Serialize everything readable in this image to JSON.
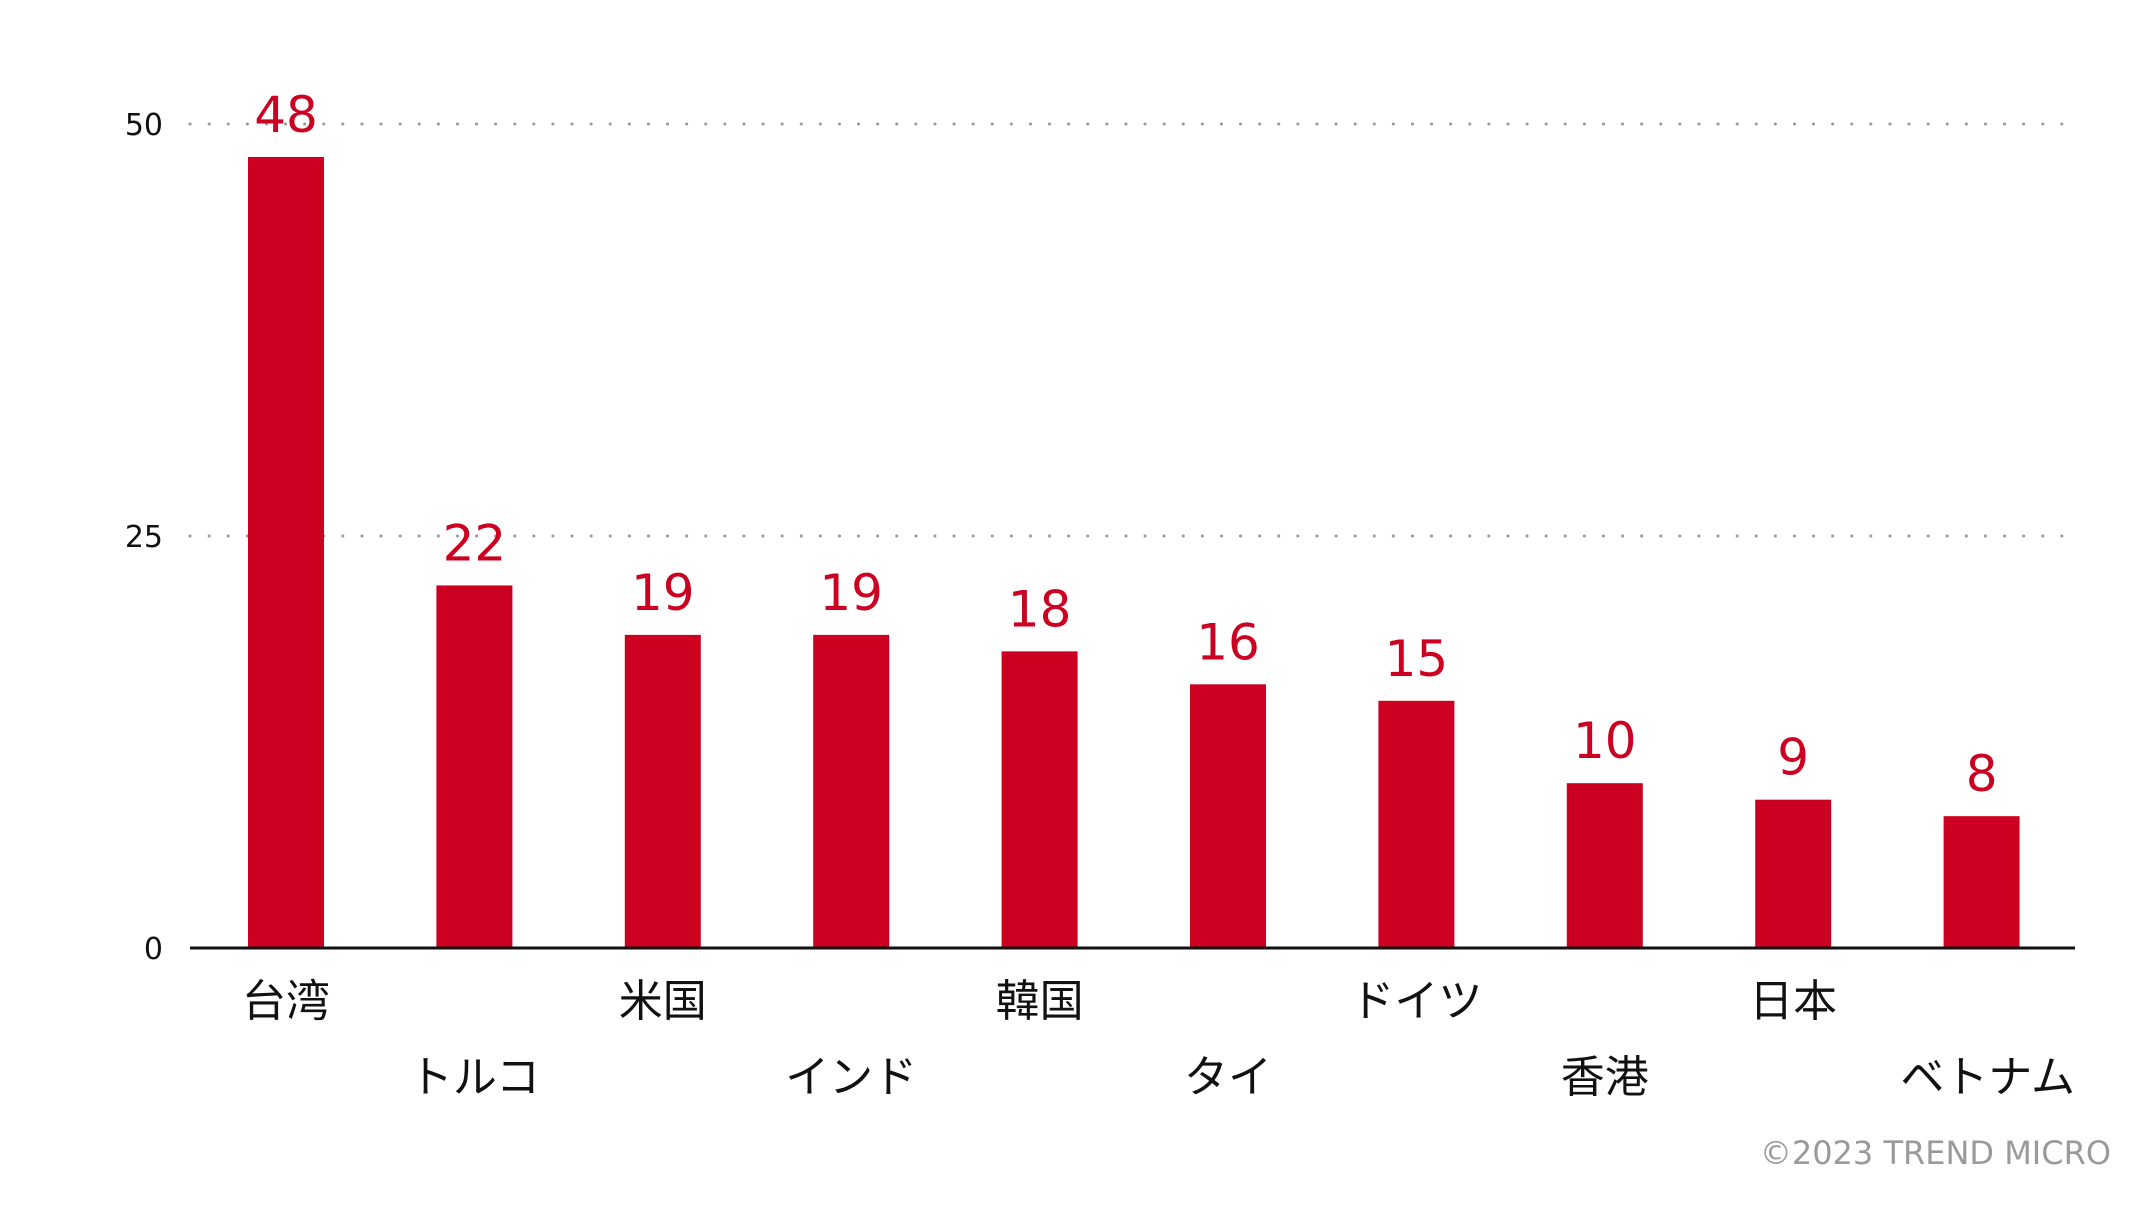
{
  "chart_data": {
    "type": "bar",
    "categories": [
      "台湾",
      "トルコ",
      "米国",
      "インド",
      "韓国",
      "タイ",
      "ドイツ",
      "香港",
      "日本",
      "ベトナム"
    ],
    "values": [
      48,
      22,
      19,
      19,
      18,
      16,
      15,
      10,
      9,
      8
    ],
    "ylim": [
      0,
      50
    ],
    "yticks": [
      0,
      25,
      50
    ],
    "grid": "horizontal-dotted",
    "show_value_labels": true,
    "category_label_layout": "staggered-two-rows"
  },
  "colors": {
    "bar": "#cc0020",
    "value_label": "#cc0020",
    "axis": "#111111",
    "grid": "#9a9a9a",
    "copyright": "#9a9a9a"
  },
  "footer": {
    "copyright": "©2023 TREND MICRO"
  }
}
